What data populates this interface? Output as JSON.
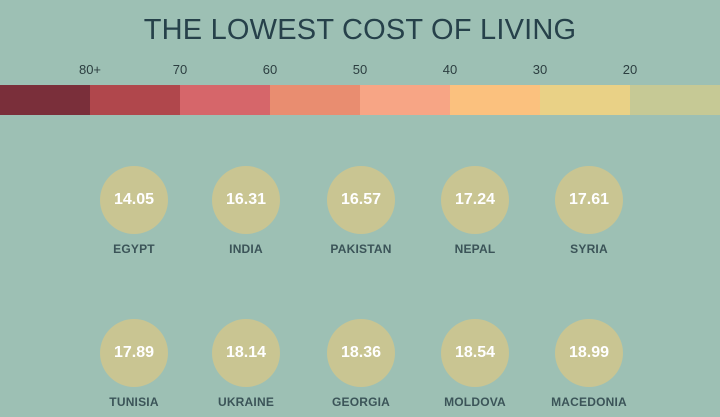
{
  "chart_data": {
    "type": "table",
    "title": "THE LOWEST COST OF LIVING",
    "scale": {
      "ticks": [
        "80+",
        "70",
        "60",
        "50",
        "40",
        "30",
        "20"
      ],
      "colors": [
        "#7a2f3a",
        "#b0474c",
        "#d6666a",
        "#e98d70",
        "#f7a585",
        "#fbc17e",
        "#e9d186",
        "#c6c995"
      ]
    },
    "countries": [
      "EGYPT",
      "INDIA",
      "PAKISTAN",
      "NEPAL",
      "SYRIA",
      "TUNISIA",
      "UKRAINE",
      "GEORGIA",
      "MOLDOVA",
      "MACEDONIA"
    ],
    "values": [
      "14.05",
      "16.31",
      "16.57",
      "17.24",
      "17.61",
      "17.89",
      "18.14",
      "18.36",
      "18.54",
      "18.99"
    ],
    "circle_color": "#c9c592"
  }
}
